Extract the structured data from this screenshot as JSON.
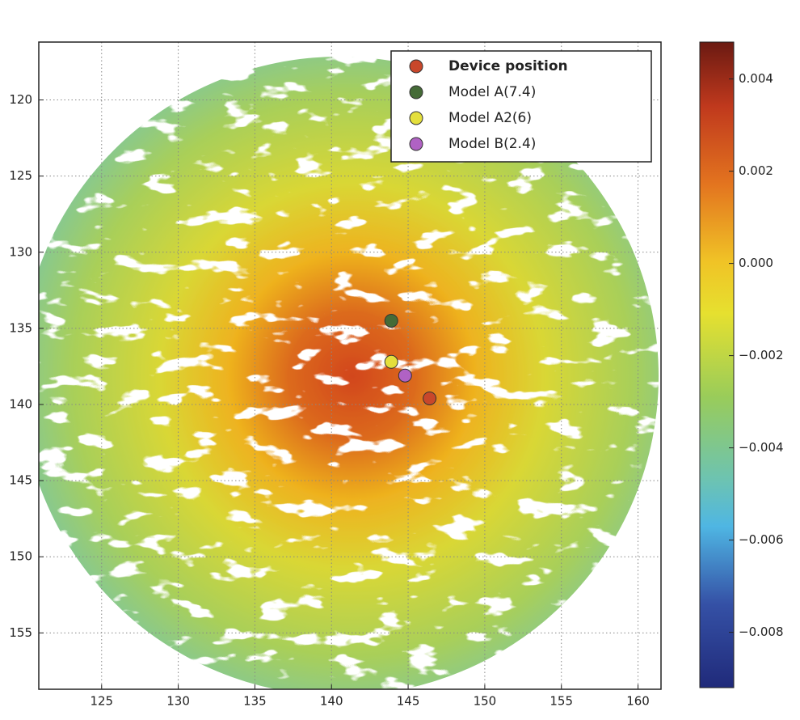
{
  "chart_data": {
    "type": "scatter",
    "series": [
      {
        "name": "Device position",
        "color": "#c8472b",
        "x": [
          146.4
        ],
        "y": [
          139.6
        ]
      },
      {
        "name": "Model A(7.4)",
        "color": "#456b37",
        "x": [
          143.9
        ],
        "y": [
          134.5
        ]
      },
      {
        "name": "Model A2(6)",
        "color": "#e4df3c",
        "x": [
          143.9
        ],
        "y": [
          137.2
        ]
      },
      {
        "name": "Model B(2.4)",
        "color": "#b062c4",
        "x": [
          144.8
        ],
        "y": [
          138.1
        ]
      }
    ],
    "xlim": [
      120.9,
      161.5
    ],
    "ylim": [
      158.7,
      116.2
    ],
    "xticks": [
      125,
      130,
      135,
      140,
      145,
      150,
      155,
      160
    ],
    "yticks": [
      120,
      125,
      130,
      135,
      140,
      145,
      150,
      155
    ],
    "grid": true,
    "legend": "upper right",
    "colorbar": {
      "lim": [
        -0.0092,
        0.0048
      ],
      "ticks": [
        0.004,
        0.002,
        {
          "value": 0,
          "label": "0.000"
        },
        {
          "value": -0.002,
          "label": "−0.002"
        },
        {
          "value": -0.004,
          "label": "−0.004"
        },
        {
          "value": -0.006,
          "label": "−0.006"
        },
        {
          "value": -0.008,
          "label": "−0.008"
        }
      ]
    }
  }
}
